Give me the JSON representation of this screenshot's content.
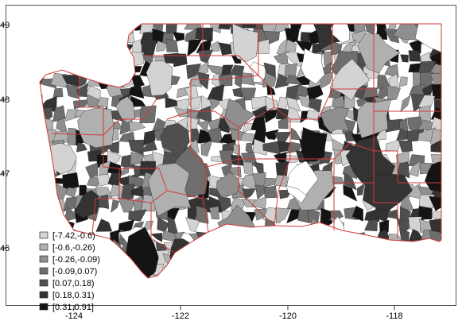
{
  "map": {
    "x_ticks": [
      "-124",
      "-122",
      "-120",
      "-118"
    ],
    "y_ticks": [
      "46",
      "47",
      "48",
      "49"
    ],
    "legend": [
      {
        "label": "[-7.42,-0.6)",
        "color": "#d3d3d3"
      },
      {
        "label": "[-0.6,-0.26)",
        "color": "#b0b0b0"
      },
      {
        "label": "[-0.26,-0.09)",
        "color": "#8f8f8f"
      },
      {
        "label": "[-0.09,0.07)",
        "color": "#6e6e6e"
      },
      {
        "label": "[0.07,0.18)",
        "color": "#4f4f4f"
      },
      {
        "label": "[0.18,0.31)",
        "color": "#333333"
      },
      {
        "label": "[0.31,0.91]",
        "color": "#141414"
      }
    ],
    "colors": {
      "county_border": "#d23a3a",
      "frame": "#555555",
      "no_data": "#ffffff"
    }
  }
}
